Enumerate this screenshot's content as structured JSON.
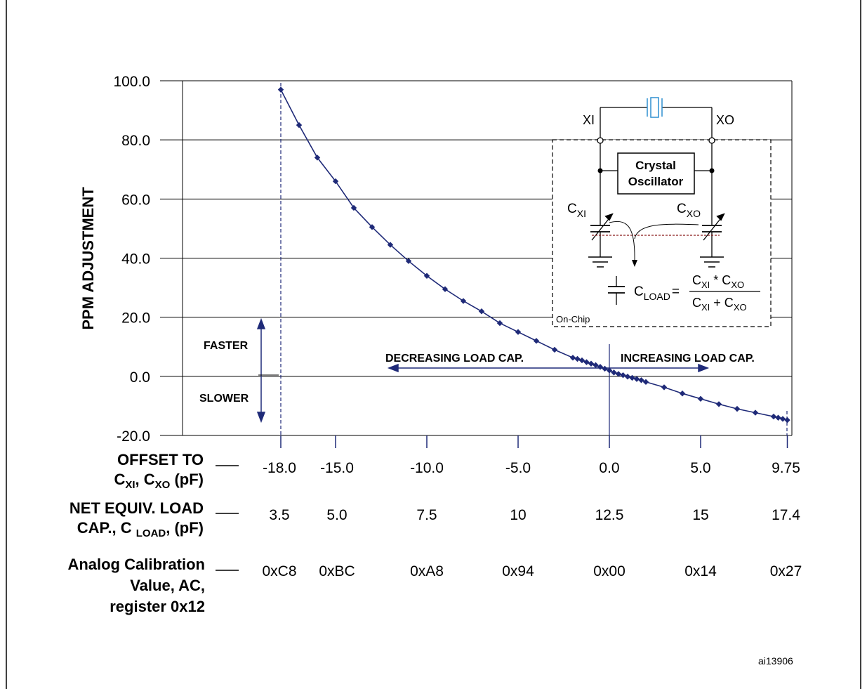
{
  "chart_data": {
    "type": "scatter",
    "ylabel": "PPM ADJUSTMENT",
    "ylim": [
      -20,
      100
    ],
    "xlim": [
      -18,
      9.75
    ],
    "y_ticks": [
      "100.0",
      "80.0",
      "60.0",
      "40.0",
      "20.0",
      "0.0",
      "-20.0"
    ],
    "grid": true,
    "series": [
      {
        "x": [
          -18,
          -17,
          -16,
          -15,
          -14,
          -13,
          -12,
          -11,
          -10,
          -9,
          -8,
          -7,
          -6,
          -5,
          -4,
          -3,
          -2,
          -1.75,
          -1.5,
          -1.25,
          -1,
          -0.75,
          -0.5,
          -0.25,
          0,
          0.25,
          0.5,
          0.75,
          1,
          1.25,
          1.5,
          1.75,
          2,
          3,
          4,
          5,
          6,
          7,
          8,
          9,
          9.25,
          9.5,
          9.75
        ],
        "values": [
          97,
          85,
          74,
          66,
          57,
          50.5,
          44.5,
          39,
          34,
          29.5,
          25.5,
          22,
          18,
          15,
          12,
          9,
          6.3,
          5.9,
          5.4,
          4.8,
          4.3,
          3.8,
          3.2,
          2.6,
          2.0,
          1.3,
          0.8,
          0.4,
          -0.1,
          -0.5,
          -0.9,
          -1.3,
          -1.9,
          -3.7,
          -5.8,
          -7.6,
          -9.4,
          -11,
          -12.3,
          -13.6,
          -14,
          -14.4,
          -14.8
        ]
      }
    ],
    "annotations": {
      "faster": "FASTER",
      "slower": "SLOWER",
      "decreasing": "DECREASING LOAD CAP.",
      "increasing": "INCREASING LOAD CAP."
    },
    "table_rows": [
      {
        "label_lines": [
          "OFFSET TO",
          "C",
          "XI",
          ", C",
          "XO",
          " (pF)"
        ],
        "values": [
          "-18.0",
          "-15.0",
          "-10.0",
          "-5.0",
          "0.0",
          "5.0",
          "9.75"
        ]
      },
      {
        "label_lines": [
          "NET EQUIV. LOAD",
          "CAP., C ",
          "LOAD",
          ", (pF)"
        ],
        "values": [
          "3.5",
          "5.0",
          "7.5",
          "10",
          "12.5",
          "15",
          "17.4"
        ]
      },
      {
        "label_lines": [
          "Analog Calibration",
          "Value, AC,",
          "register 0x12"
        ],
        "values": [
          "0xC8",
          "0xBC",
          "0xA8",
          "0x94",
          "0x00",
          "0x14",
          "0x27"
        ]
      }
    ]
  },
  "inset": {
    "xi": "XI",
    "xo": "XO",
    "osc_line1": "Crystal",
    "osc_line2": "Oscillator",
    "cxi_c": "C",
    "cxi_sub": "XI",
    "cxo_c": "C",
    "cxo_sub": "XO",
    "cload_c": "C",
    "cload_sub": "LOAD",
    "equals": "=",
    "num_c1": "C",
    "num_sub1": "XI",
    "num_op": " * C",
    "num_sub2": "XO",
    "den_c1": "C",
    "den_sub1": "XI",
    "den_op": " + C",
    "den_sub2": "XO",
    "on_chip": "On-Chip"
  },
  "figure_id": "ai13906",
  "colors": {
    "curve": "#1f2a78",
    "crystal": "#2e8fd0",
    "dotted": "#8b1a1a",
    "grid": "#000000"
  }
}
